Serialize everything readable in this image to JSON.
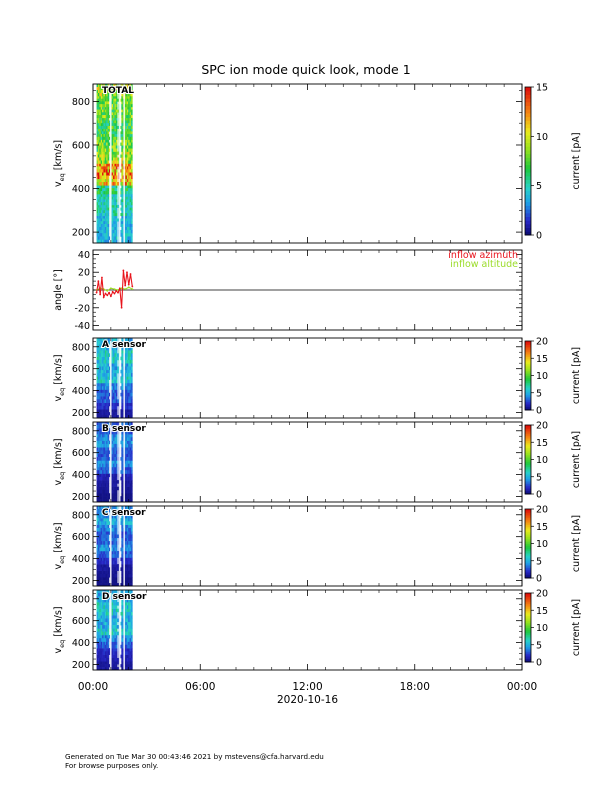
{
  "title": "SPC ion mode quick look, mode 1",
  "time_axis": {
    "ticks": [
      "00:00",
      "06:00",
      "12:00",
      "18:00",
      "00:00"
    ],
    "date_label": "2020-10-16"
  },
  "chart_data": [
    {
      "type": "heatmap",
      "panel": "total",
      "label": "TOTAL",
      "ylabel": "v_eq [km/s]",
      "ylim": [
        150,
        880
      ],
      "yticks": [
        200,
        400,
        600,
        800
      ],
      "data_span_hours": [
        0.2,
        2.2
      ],
      "colorbar": {
        "label": "current [pA]",
        "range": [
          0,
          15
        ],
        "ticks": [
          0,
          5,
          10,
          15
        ]
      },
      "rows": [
        {
          "v": 200,
          "level": 4
        },
        {
          "v": 250,
          "level": 4
        },
        {
          "v": 300,
          "level": 5
        },
        {
          "v": 350,
          "level": 5
        },
        {
          "v": 400,
          "level": 6
        },
        {
          "v": 430,
          "level": 11
        },
        {
          "v": 460,
          "level": 13
        },
        {
          "v": 490,
          "level": 12
        },
        {
          "v": 540,
          "level": 9
        },
        {
          "v": 600,
          "level": 8
        },
        {
          "v": 650,
          "level": 7
        },
        {
          "v": 700,
          "level": 7
        },
        {
          "v": 750,
          "level": 8
        },
        {
          "v": 800,
          "level": 8
        },
        {
          "v": 850,
          "level": 9
        }
      ]
    },
    {
      "type": "line",
      "panel": "angle",
      "ylabel": "angle [°]",
      "ylim": [
        -45,
        45
      ],
      "yticks": [
        -40,
        -20,
        0,
        20,
        40
      ],
      "series": [
        {
          "name": "inflow azimuth",
          "color": "#e8141c",
          "x": [
            0.2,
            0.3,
            0.4,
            0.5,
            0.6,
            0.7,
            0.8,
            0.9,
            1.0,
            1.1,
            1.2,
            1.3,
            1.4,
            1.5,
            1.6,
            1.7,
            1.8,
            1.9,
            2.0,
            2.1,
            2.2
          ],
          "y": [
            -3,
            10,
            -5,
            14,
            -8,
            -4,
            -6,
            -3,
            -7,
            -2,
            -4,
            -1,
            -3,
            2,
            -20,
            22,
            5,
            20,
            6,
            18,
            4
          ]
        },
        {
          "name": "inflow altitude",
          "color": "#9bdc28",
          "x": [
            0.2,
            0.4,
            0.6,
            0.8,
            1.0,
            1.2,
            1.4,
            1.6,
            1.8,
            2.0,
            2.2
          ],
          "y": [
            0,
            2,
            1,
            -1,
            2,
            1,
            0,
            2,
            1,
            3,
            1
          ]
        }
      ]
    },
    {
      "type": "heatmap",
      "panel": "A",
      "label": "A sensor",
      "ylabel": "v_eq [km/s]",
      "ylim": [
        150,
        880
      ],
      "yticks": [
        200,
        400,
        600,
        800
      ],
      "data_span_hours": [
        0.2,
        2.2
      ],
      "colorbar": {
        "label": "current [pA]",
        "range": [
          0,
          20
        ],
        "ticks": [
          0,
          5,
          10,
          15,
          20
        ]
      },
      "rows": [
        {
          "v": 200,
          "level": 1
        },
        {
          "v": 260,
          "level": 2
        },
        {
          "v": 320,
          "level": 3
        },
        {
          "v": 380,
          "level": 3
        },
        {
          "v": 440,
          "level": 4
        },
        {
          "v": 500,
          "level": 6
        },
        {
          "v": 560,
          "level": 5
        },
        {
          "v": 620,
          "level": 5
        },
        {
          "v": 680,
          "level": 6
        },
        {
          "v": 740,
          "level": 6
        },
        {
          "v": 800,
          "level": 5
        },
        {
          "v": 850,
          "level": 5
        }
      ]
    },
    {
      "type": "heatmap",
      "panel": "B",
      "label": "B sensor",
      "ylabel": "v_eq [km/s]",
      "ylim": [
        150,
        880
      ],
      "yticks": [
        200,
        400,
        600,
        800
      ],
      "data_span_hours": [
        0.2,
        2.2
      ],
      "colorbar": {
        "label": "current [pA]",
        "range": [
          0,
          20
        ],
        "ticks": [
          0,
          5,
          10,
          15,
          20
        ]
      },
      "rows": [
        {
          "v": 200,
          "level": 0.5
        },
        {
          "v": 260,
          "level": 0.8
        },
        {
          "v": 320,
          "level": 1
        },
        {
          "v": 380,
          "level": 1.5
        },
        {
          "v": 440,
          "level": 3
        },
        {
          "v": 500,
          "level": 4
        },
        {
          "v": 560,
          "level": 3
        },
        {
          "v": 620,
          "level": 3
        },
        {
          "v": 680,
          "level": 4
        },
        {
          "v": 740,
          "level": 4
        },
        {
          "v": 800,
          "level": 3
        },
        {
          "v": 850,
          "level": 3
        }
      ]
    },
    {
      "type": "heatmap",
      "panel": "C",
      "label": "C sensor",
      "ylabel": "v_eq [km/s]",
      "ylim": [
        150,
        880
      ],
      "yticks": [
        200,
        400,
        600,
        800
      ],
      "data_span_hours": [
        0.2,
        2.2
      ],
      "colorbar": {
        "label": "current [pA]",
        "range": [
          0,
          20
        ],
        "ticks": [
          0,
          5,
          10,
          15,
          20
        ]
      },
      "rows": [
        {
          "v": 200,
          "level": 0.5
        },
        {
          "v": 260,
          "level": 0.8
        },
        {
          "v": 320,
          "level": 1
        },
        {
          "v": 380,
          "level": 2
        },
        {
          "v": 440,
          "level": 3
        },
        {
          "v": 500,
          "level": 4
        },
        {
          "v": 560,
          "level": 3
        },
        {
          "v": 620,
          "level": 3
        },
        {
          "v": 680,
          "level": 4
        },
        {
          "v": 740,
          "level": 5
        },
        {
          "v": 800,
          "level": 4
        },
        {
          "v": 850,
          "level": 4
        }
      ]
    },
    {
      "type": "heatmap",
      "panel": "D",
      "label": "D sensor",
      "ylabel": "v_eq [km/s]",
      "ylim": [
        150,
        880
      ],
      "yticks": [
        200,
        400,
        600,
        800
      ],
      "data_span_hours": [
        0.2,
        2.2
      ],
      "colorbar": {
        "label": "current [pA]",
        "range": [
          0,
          20
        ],
        "ticks": [
          0,
          5,
          10,
          15,
          20
        ]
      },
      "rows": [
        {
          "v": 200,
          "level": 1
        },
        {
          "v": 260,
          "level": 1.5
        },
        {
          "v": 320,
          "level": 2
        },
        {
          "v": 380,
          "level": 3
        },
        {
          "v": 440,
          "level": 4
        },
        {
          "v": 500,
          "level": 6
        },
        {
          "v": 560,
          "level": 5
        },
        {
          "v": 620,
          "level": 5
        },
        {
          "v": 680,
          "level": 6
        },
        {
          "v": 740,
          "level": 6
        },
        {
          "v": 800,
          "level": 5
        },
        {
          "v": 850,
          "level": 5
        }
      ]
    }
  ],
  "footer": {
    "line1": "Generated on Tue Mar 30 00:43:46 2021 by mstevens@cfa.harvard.edu",
    "line2": "For browse purposes only."
  }
}
